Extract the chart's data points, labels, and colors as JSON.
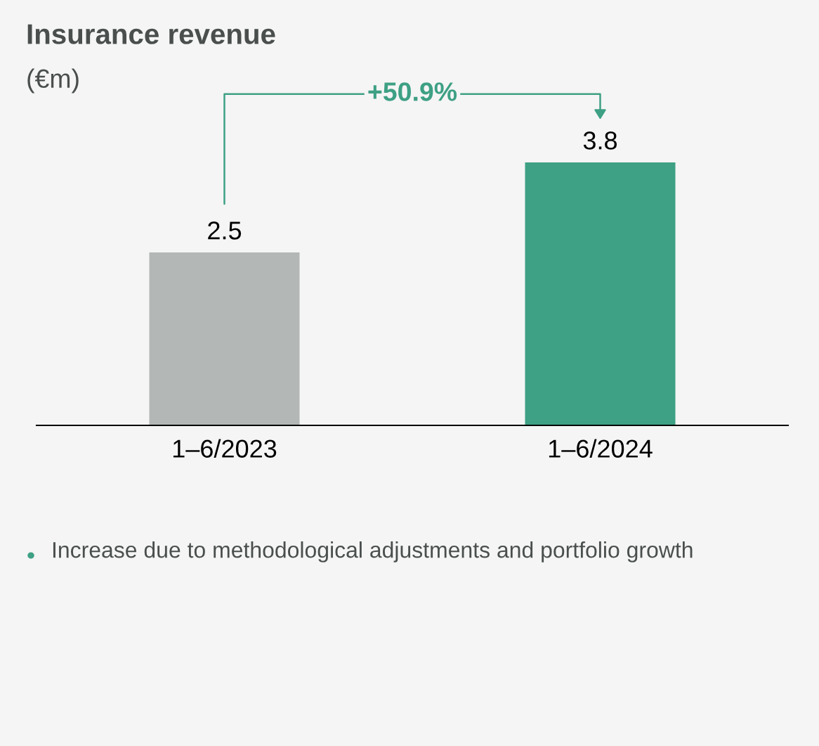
{
  "chart_data": {
    "type": "bar",
    "title": "Insurance revenue",
    "subtitle": "(€m)",
    "categories": [
      "1–6/2023",
      "1–6/2024"
    ],
    "values": [
      2.5,
      3.8
    ],
    "colors": [
      "#b3b8b7",
      "#3ea084"
    ],
    "data_labels": true,
    "grid": false,
    "legend": false,
    "annotations": [
      "+50.9%",
      "Increase due to methodological adjustments and portfolio growth"
    ]
  }
}
